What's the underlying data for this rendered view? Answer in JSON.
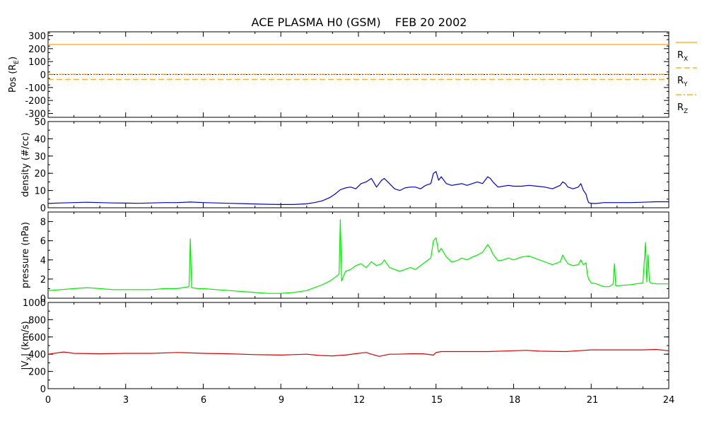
{
  "title": "ACE PLASMA H0 (GSM)    FEB 20 2002",
  "x_ticks": [
    "0",
    "3",
    "6",
    "9",
    "12",
    "15",
    "18",
    "21",
    "24"
  ],
  "colors": {
    "pos": "#ffa500",
    "density": "#0000d0",
    "pressure": "#00ee00",
    "vx": "#dd0000",
    "axis": "#000000"
  },
  "chart_data": [
    {
      "type": "line",
      "ylabel": "Pos (R",
      "ylabel_sub": "E",
      "ylabel_end": ")",
      "xlim": [
        0,
        24
      ],
      "ylim": [
        -330,
        330
      ],
      "y_ticks": [
        "300",
        "200",
        "100",
        "0",
        "-100",
        "-200",
        "-300"
      ],
      "y_tick_values": [
        300,
        200,
        100,
        0,
        -100,
        -200,
        -300
      ],
      "series": [
        {
          "name": "R",
          "sub": "X",
          "style": "solid",
          "x": [
            0,
            24
          ],
          "values": [
            232,
            232
          ]
        },
        {
          "name": "R",
          "sub": "Y",
          "style": "dashed",
          "x": [
            0,
            24
          ],
          "values": [
            -37,
            -37
          ]
        },
        {
          "name": "R",
          "sub": "Z",
          "style": "dashdot",
          "x": [
            0,
            24
          ],
          "values": [
            2,
            2
          ]
        }
      ],
      "zero_line": 0
    },
    {
      "type": "line",
      "ylabel": "density (#/cc)",
      "xlim": [
        0,
        24
      ],
      "ylim": [
        0,
        50
      ],
      "y_ticks": [
        "50",
        "40",
        "30",
        "20",
        "10",
        "0"
      ],
      "y_tick_values": [
        50,
        40,
        30,
        20,
        10,
        0
      ],
      "series": [
        {
          "name": "density",
          "x": [
            0,
            0.5,
            1,
            1.5,
            2,
            2.5,
            3,
            3.5,
            4,
            4.5,
            5,
            5.5,
            6,
            6.5,
            7,
            7.5,
            8,
            8.5,
            9,
            9.5,
            10,
            10.3,
            10.6,
            10.9,
            11.1,
            11.3,
            11.5,
            11.7,
            11.9,
            12.1,
            12.3,
            12.5,
            12.7,
            12.9,
            13.0,
            13.2,
            13.4,
            13.6,
            13.8,
            14,
            14.2,
            14.4,
            14.6,
            14.8,
            14.9,
            15,
            15.1,
            15.2,
            15.4,
            15.6,
            15.8,
            16,
            16.2,
            16.4,
            16.6,
            16.8,
            17,
            17.1,
            17.2,
            17.4,
            17.6,
            17.8,
            18,
            18.3,
            18.6,
            18.9,
            19.2,
            19.5,
            19.8,
            19.9,
            20.0,
            20.1,
            20.3,
            20.5,
            20.6,
            20.7,
            20.8,
            20.85,
            20.9,
            21,
            21.2,
            21.5,
            22,
            22.5,
            23,
            23.5,
            24
          ],
          "values": [
            2.5,
            2.8,
            3.0,
            3.2,
            3.0,
            2.8,
            2.7,
            2.6,
            2.8,
            3.0,
            3.0,
            3.3,
            3.0,
            2.8,
            2.6,
            2.4,
            2.2,
            2.0,
            1.9,
            1.9,
            2.3,
            3.0,
            4.0,
            6.0,
            8.0,
            10.5,
            11.5,
            12.0,
            11.0,
            14.0,
            15.0,
            17.0,
            12.0,
            16.0,
            17.0,
            14.0,
            11.0,
            10.0,
            11.5,
            12.0,
            12.0,
            11.0,
            13.0,
            14.0,
            20.0,
            21.0,
            16.0,
            18.0,
            14.0,
            13.0,
            13.5,
            14.0,
            13.0,
            14.0,
            15.0,
            14.0,
            18.0,
            17.0,
            15.0,
            12.0,
            12.5,
            13.0,
            12.5,
            12.5,
            13.0,
            12.5,
            12.0,
            11.0,
            13.0,
            15.0,
            14.0,
            12.0,
            11.0,
            12.0,
            14.0,
            10.0,
            8.0,
            5.0,
            3.0,
            2.5,
            2.5,
            3.0,
            3.0,
            3.0,
            3.2,
            3.5,
            3.5
          ]
        }
      ]
    },
    {
      "type": "line",
      "ylabel": "pressure (nPa)",
      "xlim": [
        0,
        24
      ],
      "ylim": [
        0,
        9
      ],
      "y_ticks": [
        "8",
        "6",
        "4",
        "2",
        "0"
      ],
      "y_tick_values": [
        8,
        6,
        4,
        2,
        0
      ],
      "series": [
        {
          "name": "pressure",
          "x": [
            0,
            0.5,
            1,
            1.5,
            2,
            2.5,
            3,
            3.5,
            4,
            4.5,
            5,
            5.2,
            5.45,
            5.5,
            5.55,
            5.8,
            6,
            6.5,
            7,
            7.5,
            8,
            8.5,
            9,
            9.5,
            10,
            10.3,
            10.6,
            10.9,
            11.1,
            11.25,
            11.3,
            11.35,
            11.5,
            11.7,
            11.9,
            12.1,
            12.3,
            12.5,
            12.7,
            12.9,
            13.0,
            13.2,
            13.4,
            13.6,
            13.8,
            14,
            14.2,
            14.4,
            14.6,
            14.8,
            14.9,
            15,
            15.1,
            15.2,
            15.4,
            15.6,
            15.8,
            16,
            16.2,
            16.4,
            16.6,
            16.8,
            17,
            17.1,
            17.2,
            17.4,
            17.6,
            17.8,
            18,
            18.3,
            18.6,
            18.9,
            19.2,
            19.5,
            19.8,
            19.9,
            20.0,
            20.1,
            20.3,
            20.5,
            20.6,
            20.7,
            20.8,
            20.85,
            20.9,
            21,
            21.2,
            21.5,
            21.7,
            21.85,
            21.9,
            21.95,
            22,
            22.5,
            23,
            23.1,
            23.15,
            23.2,
            23.25,
            23.3,
            23.5,
            24
          ],
          "values": [
            0.8,
            0.9,
            1.0,
            1.1,
            1.0,
            0.9,
            0.9,
            0.9,
            0.9,
            1.0,
            1.0,
            1.1,
            1.2,
            6.2,
            1.1,
            1.0,
            1.0,
            0.9,
            0.8,
            0.7,
            0.6,
            0.5,
            0.5,
            0.6,
            0.8,
            1.1,
            1.4,
            1.8,
            2.2,
            2.5,
            8.2,
            1.8,
            2.8,
            3.0,
            3.4,
            3.6,
            3.2,
            3.8,
            3.4,
            3.6,
            4.0,
            3.2,
            3.0,
            2.8,
            3.0,
            3.2,
            3.0,
            3.4,
            3.8,
            4.2,
            6.0,
            6.3,
            4.8,
            5.2,
            4.3,
            3.8,
            3.9,
            4.2,
            4.0,
            4.3,
            4.5,
            4.8,
            5.6,
            5.2,
            4.6,
            3.9,
            4.0,
            4.2,
            4.0,
            4.3,
            4.4,
            4.1,
            3.8,
            3.5,
            3.8,
            4.5,
            4.0,
            3.6,
            3.4,
            3.5,
            4.0,
            3.5,
            3.7,
            2.5,
            2.0,
            1.6,
            1.5,
            1.2,
            1.2,
            1.5,
            3.6,
            1.3,
            1.3,
            1.4,
            1.6,
            5.8,
            1.7,
            4.5,
            1.8,
            1.6,
            1.5,
            1.5
          ]
        }
      ]
    },
    {
      "type": "line",
      "ylabel": "|V",
      "ylabel_sub": "X",
      "ylabel_end": "| (km/s)",
      "xlim": [
        0,
        24
      ],
      "ylim": [
        0,
        1000
      ],
      "y_ticks": [
        "1000",
        "800",
        "600",
        "400",
        "200",
        "0"
      ],
      "y_tick_values": [
        1000,
        800,
        600,
        400,
        200,
        0
      ],
      "series": [
        {
          "name": "Vx",
          "x": [
            0,
            0.6,
            1,
            2,
            3,
            4,
            5,
            6,
            7,
            8,
            9,
            9.5,
            10,
            10.5,
            11,
            11.5,
            12,
            12.3,
            12.5,
            12.8,
            13.2,
            13.5,
            14,
            14.5,
            14.9,
            15,
            15.2,
            16,
            17,
            18,
            18.5,
            19,
            20,
            20.5,
            21,
            22,
            23,
            23.5,
            24
          ],
          "values": [
            400,
            425,
            410,
            405,
            410,
            410,
            420,
            410,
            405,
            395,
            390,
            395,
            400,
            385,
            380,
            390,
            410,
            420,
            400,
            375,
            400,
            400,
            405,
            405,
            390,
            420,
            430,
            430,
            430,
            440,
            445,
            435,
            430,
            440,
            450,
            450,
            450,
            455,
            440
          ]
        }
      ]
    }
  ]
}
